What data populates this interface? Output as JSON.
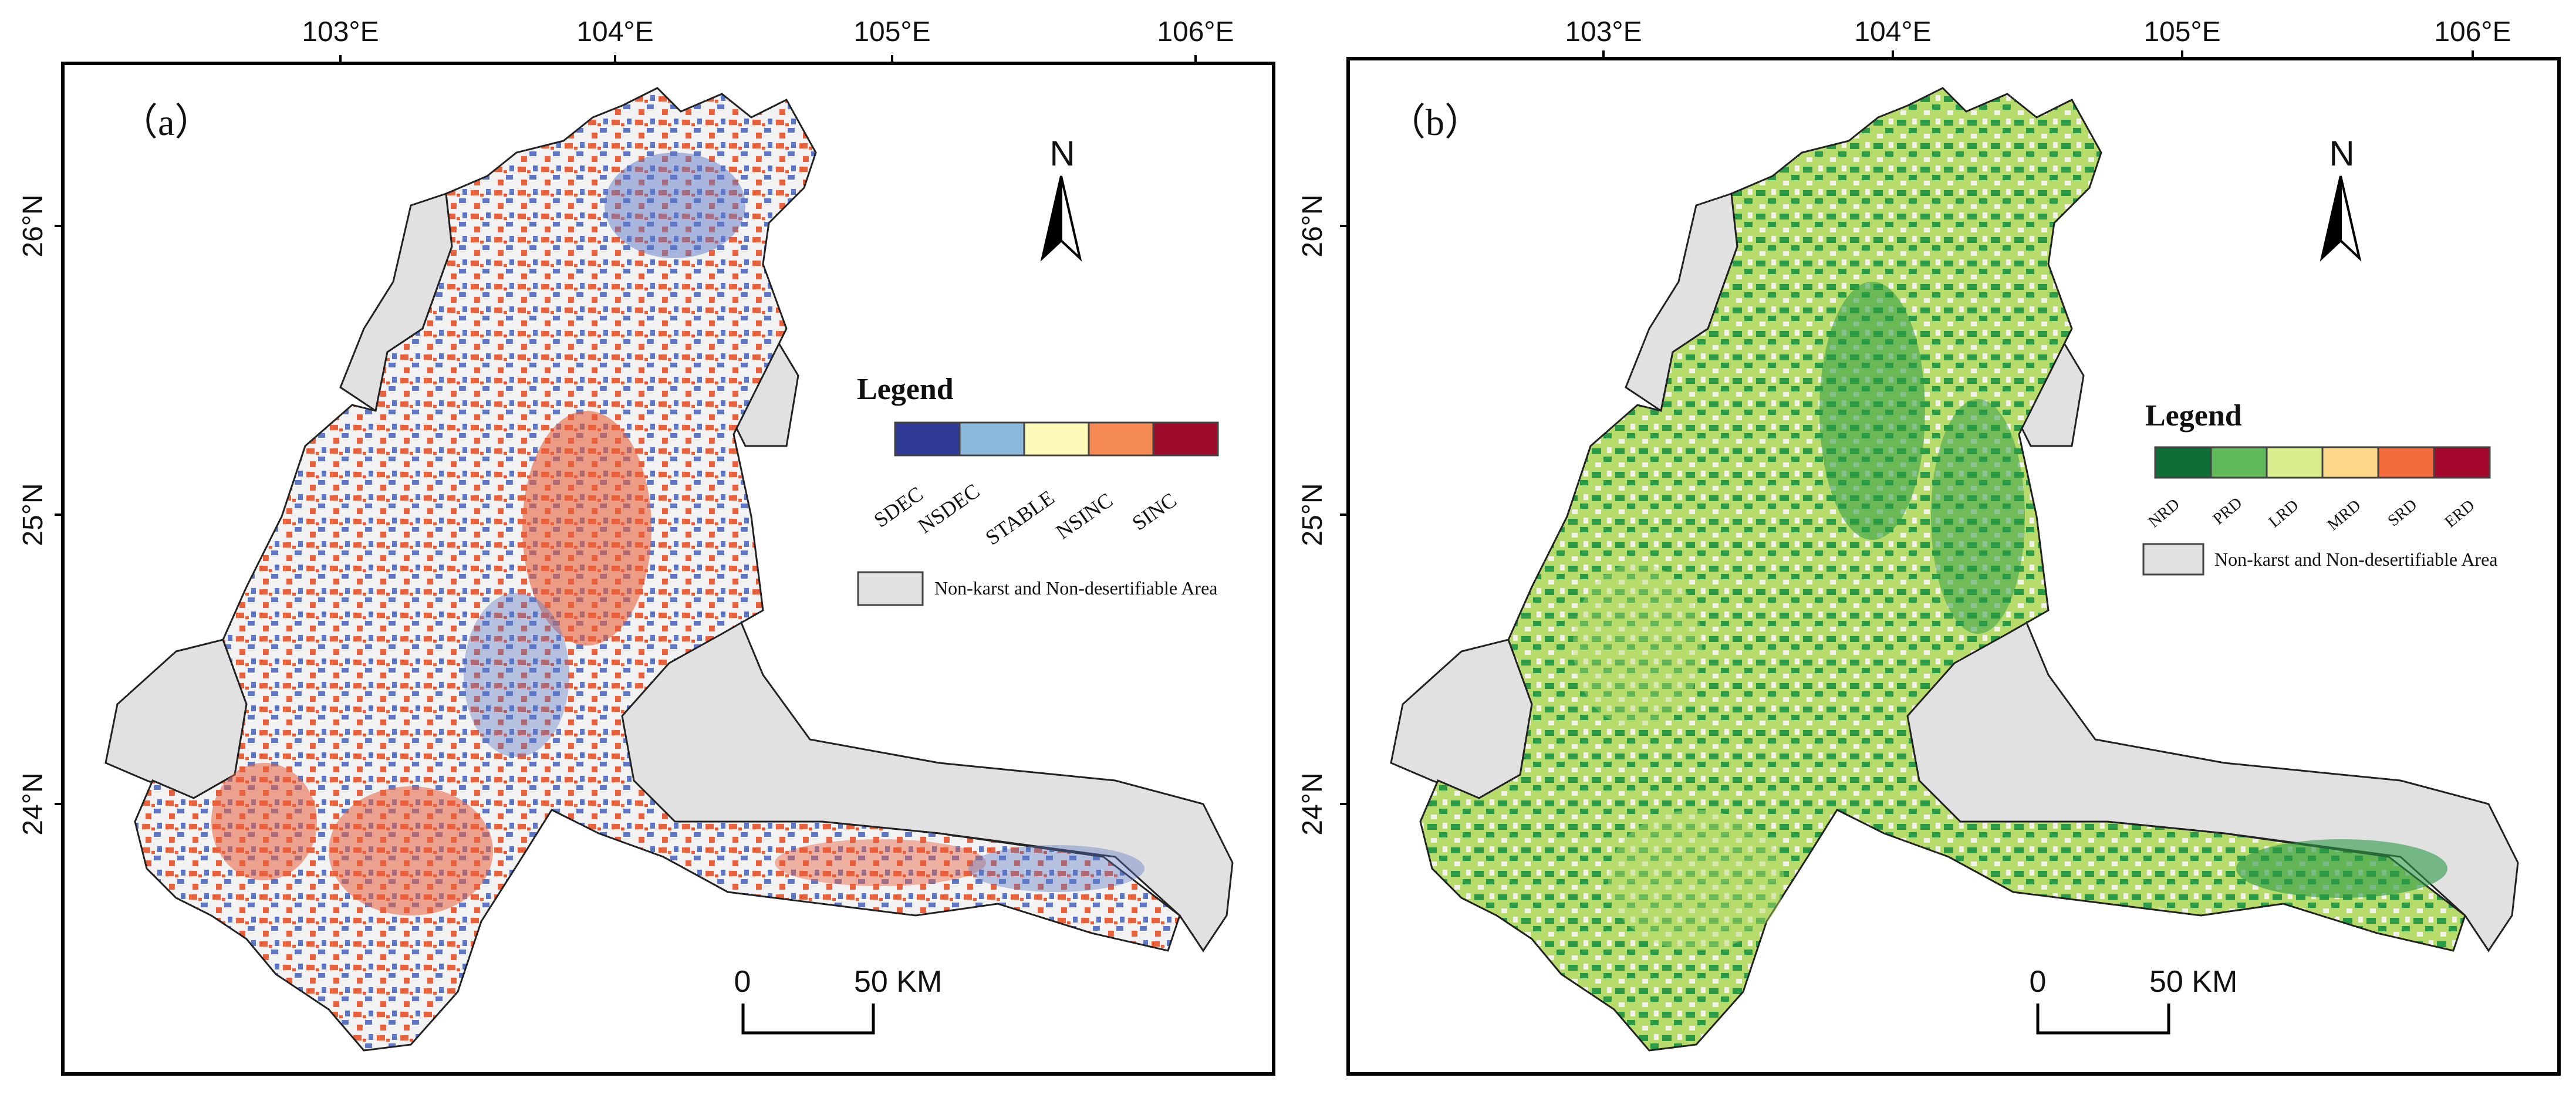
{
  "axes": {
    "lon_ticks": [
      "103°E",
      "104°E",
      "105°E",
      "106°E"
    ],
    "lat_ticks": [
      "26°N",
      "25°N",
      "24°N"
    ]
  },
  "panel_a": {
    "tag": "（a）",
    "north": "N",
    "legend": {
      "title": "Legend",
      "items": [
        {
          "label": "SDEC",
          "color": "#2e3a95"
        },
        {
          "label": "NSDEC",
          "color": "#8ab9dc"
        },
        {
          "label": "STABLE",
          "color": "#fbf8b8"
        },
        {
          "label": "NSINC",
          "color": "#f48954"
        },
        {
          "label": "SINC",
          "color": "#9e0b2b"
        }
      ],
      "nonkarst": {
        "label": "Non-karst and Non-desertifiable Area",
        "color": "#e1e1e1"
      }
    },
    "scale": {
      "start": "0",
      "end": "50 KM"
    },
    "pattern_colors": [
      "#e8603c",
      "#5d77c6",
      "#f2f2f2"
    ]
  },
  "panel_b": {
    "tag": "（b）",
    "north": "N",
    "legend": {
      "title": "Legend",
      "items": [
        {
          "label": "NRD",
          "color": "#0f6e37"
        },
        {
          "label": "PRD",
          "color": "#61ba5a"
        },
        {
          "label": "LRD",
          "color": "#d8ee8e"
        },
        {
          "label": "MRD",
          "color": "#fdd889"
        },
        {
          "label": "SRD",
          "color": "#f36a3b"
        },
        {
          "label": "ERD",
          "color": "#a3082c"
        }
      ],
      "nonkarst": {
        "label": "Non-karst and Non-desertifiable Area",
        "color": "#e1e1e1"
      }
    },
    "scale": {
      "start": "0",
      "end": "50 KM"
    },
    "pattern_colors": [
      "#2b9a46",
      "#b7dc6c",
      "#f1f1ea"
    ]
  }
}
